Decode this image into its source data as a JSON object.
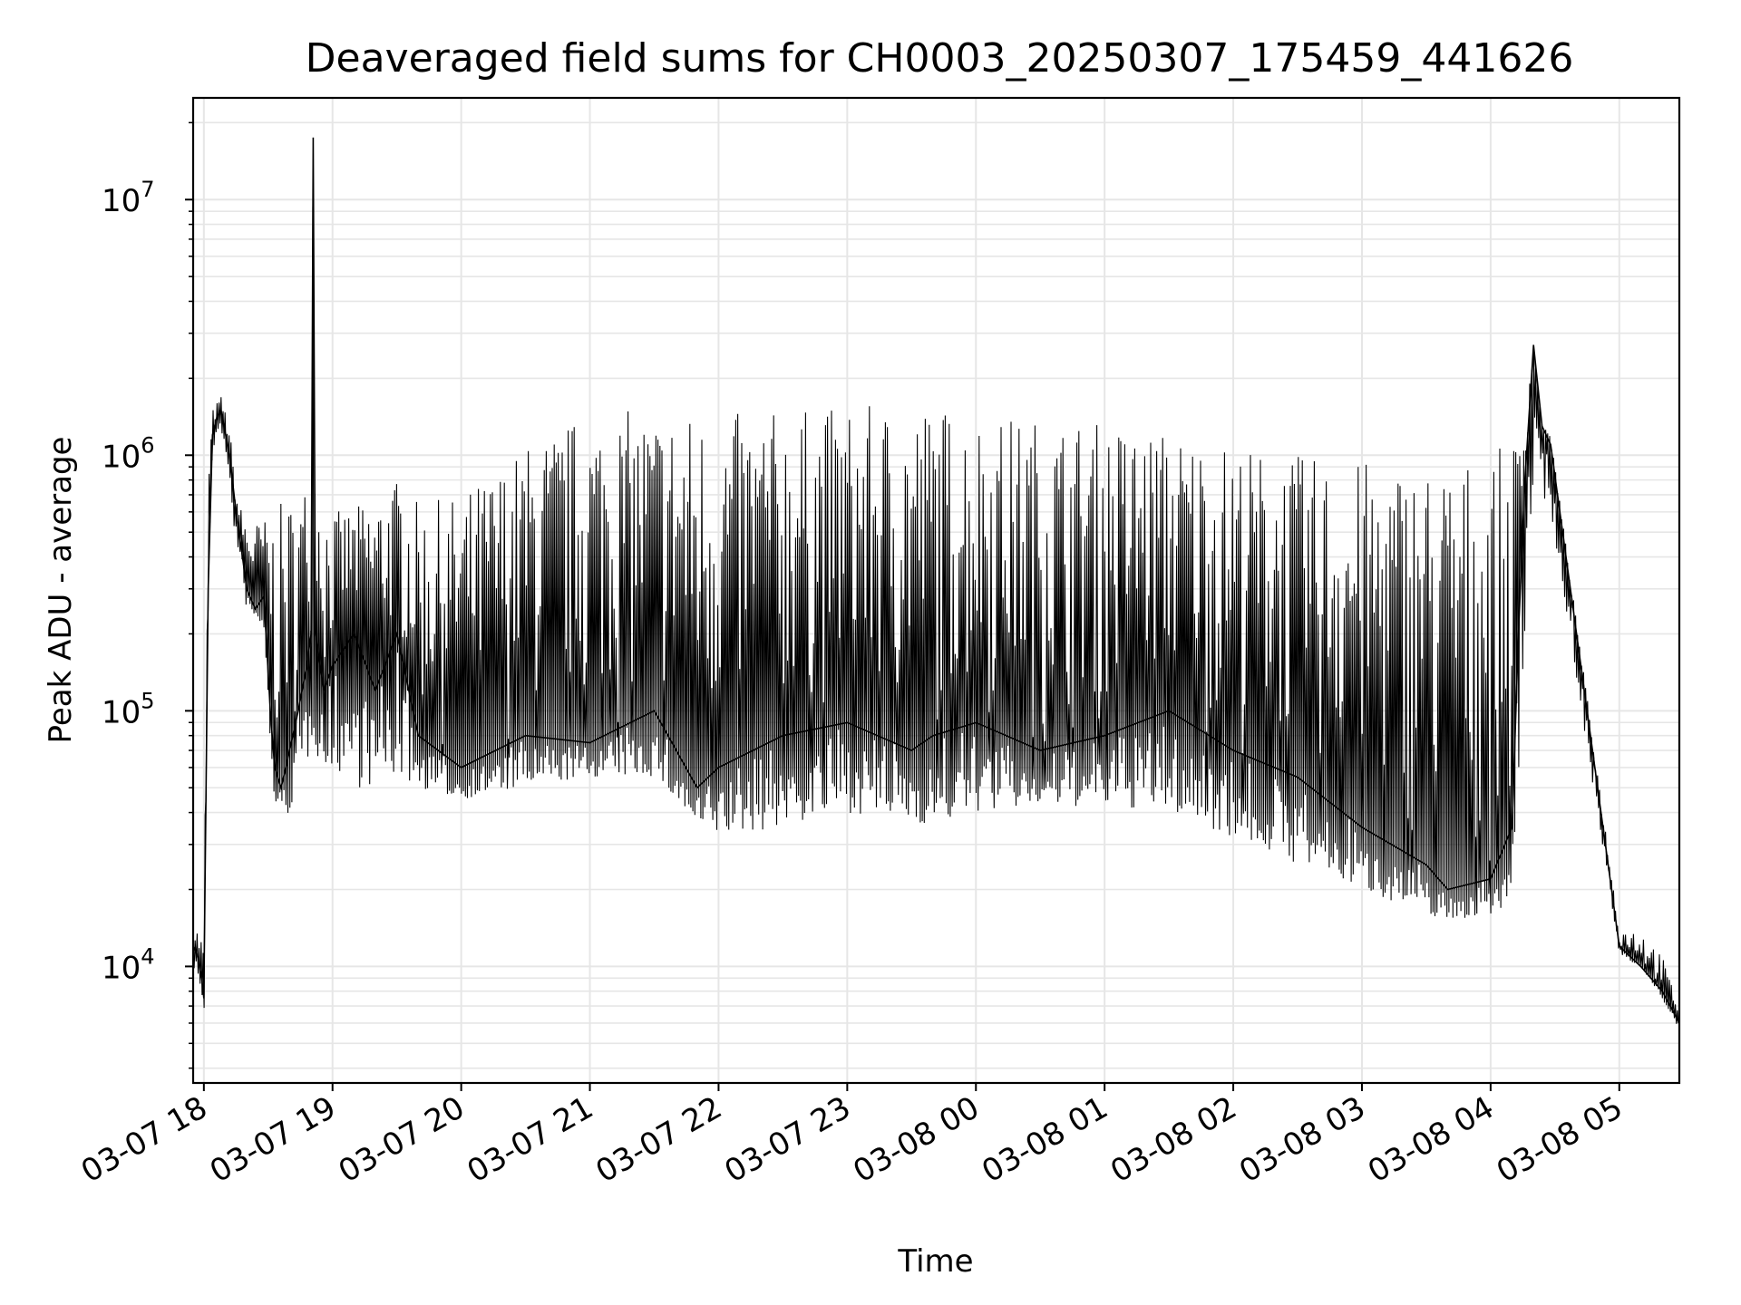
{
  "chart_data": {
    "type": "line",
    "title": "Deaveraged field sums for CH0003_20250307_175459_441626",
    "xlabel": "Time",
    "ylabel": "Peak ADU - average",
    "yscale": "log",
    "ylim": [
      3500,
      25000000
    ],
    "xlim": [
      "2025-03-07 17:55",
      "2025-03-08 05:28"
    ],
    "grid": true,
    "line_color": "#000000",
    "grid_color": "#e6e6e6",
    "x_ticks": [
      {
        "value": "2025-03-07 18:00",
        "label": "03-07 18"
      },
      {
        "value": "2025-03-07 19:00",
        "label": "03-07 19"
      },
      {
        "value": "2025-03-07 20:00",
        "label": "03-07 20"
      },
      {
        "value": "2025-03-07 21:00",
        "label": "03-07 21"
      },
      {
        "value": "2025-03-07 22:00",
        "label": "03-07 22"
      },
      {
        "value": "2025-03-07 23:00",
        "label": "03-07 23"
      },
      {
        "value": "2025-03-08 00:00",
        "label": "03-08 00"
      },
      {
        "value": "2025-03-08 01:00",
        "label": "03-08 01"
      },
      {
        "value": "2025-03-08 02:00",
        "label": "03-08 02"
      },
      {
        "value": "2025-03-08 03:00",
        "label": "03-08 03"
      },
      {
        "value": "2025-03-08 04:00",
        "label": "03-08 04"
      },
      {
        "value": "2025-03-08 05:00",
        "label": "03-08 05"
      }
    ],
    "y_ticks": [
      {
        "value": 10000,
        "base": "10",
        "exp": "4"
      },
      {
        "value": 100000,
        "base": "10",
        "exp": "5"
      },
      {
        "value": 1000000,
        "base": "10",
        "exp": "6"
      },
      {
        "value": 10000000,
        "base": "10",
        "exp": "7"
      }
    ],
    "series": [
      {
        "x": [
          "2025-03-07 17:55",
          "2025-03-07 17:57",
          "2025-03-07 17:59",
          "2025-03-07 18:00",
          "2025-03-07 18:02",
          "2025-03-07 18:04",
          "2025-03-07 18:06",
          "2025-03-07 18:08",
          "2025-03-07 18:12",
          "2025-03-07 18:15",
          "2025-03-07 18:18",
          "2025-03-07 18:20",
          "2025-03-07 18:24",
          "2025-03-07 18:28",
          "2025-03-07 18:31",
          "2025-03-07 18:33",
          "2025-03-07 18:36",
          "2025-03-07 18:40",
          "2025-03-07 18:44",
          "2025-03-07 18:48",
          "2025-03-07 18:50",
          "2025-03-07 18:51",
          "2025-03-07 18:52",
          "2025-03-07 18:56",
          "2025-03-07 19:00",
          "2025-03-07 19:10",
          "2025-03-07 19:20",
          "2025-03-07 19:30",
          "2025-03-07 19:40",
          "2025-03-07 20:00",
          "2025-03-07 20:30",
          "2025-03-07 21:00",
          "2025-03-07 21:30",
          "2025-03-07 21:50",
          "2025-03-07 22:00",
          "2025-03-07 22:30",
          "2025-03-07 23:00",
          "2025-03-07 23:30",
          "2025-03-07 23:40",
          "2025-03-08 00:00",
          "2025-03-08 00:30",
          "2025-03-08 01:00",
          "2025-03-08 01:30",
          "2025-03-08 02:00",
          "2025-03-08 02:30",
          "2025-03-08 03:00",
          "2025-03-08 03:30",
          "2025-03-08 03:40",
          "2025-03-08 04:00",
          "2025-03-08 04:10",
          "2025-03-08 04:13",
          "2025-03-08 04:16",
          "2025-03-08 04:20",
          "2025-03-08 04:24",
          "2025-03-08 04:28",
          "2025-03-08 05:00",
          "2025-03-08 05:10",
          "2025-03-08 05:20",
          "2025-03-08 05:28"
        ],
        "y": [
          12000,
          11000,
          9000,
          7500,
          300000,
          1200000,
          1400000,
          1500000,
          1000000,
          600000,
          400000,
          300000,
          250000,
          280000,
          100000,
          60000,
          50000,
          70000,
          100000,
          150000,
          200000,
          17500000,
          200000,
          120000,
          150000,
          200000,
          120000,
          200000,
          80000,
          60000,
          80000,
          75000,
          100000,
          50000,
          60000,
          80000,
          90000,
          70000,
          80000,
          90000,
          70000,
          80000,
          100000,
          70000,
          55000,
          35000,
          25000,
          20000,
          22000,
          35000,
          200000,
          800000,
          2700000,
          1300000,
          1100000,
          12000,
          10000,
          8000,
          6000
        ],
        "upper": [
          14000,
          14000,
          13000,
          12000,
          900000,
          1500000,
          1600000,
          1700000,
          1300000,
          700000,
          600000,
          560000,
          550000,
          560000,
          580000,
          600000,
          650000,
          680000,
          700000,
          800000,
          900000,
          17500000,
          900000,
          650000,
          600000,
          620000,
          700000,
          800000,
          650000,
          700000,
          1100000,
          1500000,
          1500000,
          1500000,
          1450000,
          1500000,
          1550000,
          1600000,
          1600000,
          1450000,
          1400000,
          1350000,
          1250000,
          1100000,
          1000000,
          950000,
          950000,
          950000,
          1000000,
          1150000,
          1300000,
          1400000,
          2700000,
          1300000,
          1200000,
          14000,
          14000,
          11000,
          7000
        ],
        "lower": [
          10000,
          9000,
          8000,
          5000,
          250000,
          1000000,
          1200000,
          1300000,
          700000,
          450000,
          300000,
          250000,
          230000,
          200000,
          60000,
          45000,
          35000,
          40000,
          50000,
          60000,
          70000,
          70000,
          70000,
          55000,
          60000,
          50000,
          50000,
          55000,
          50000,
          45000,
          50000,
          55000,
          55000,
          35000,
          32000,
          35000,
          40000,
          37000,
          35000,
          40000,
          42000,
          42000,
          40000,
          32000,
          25000,
          20000,
          16000,
          15000,
          16000,
          18000,
          40000,
          200000,
          800000,
          700000,
          600000,
          11000,
          10000,
          7500,
          5500
        ]
      }
    ]
  }
}
